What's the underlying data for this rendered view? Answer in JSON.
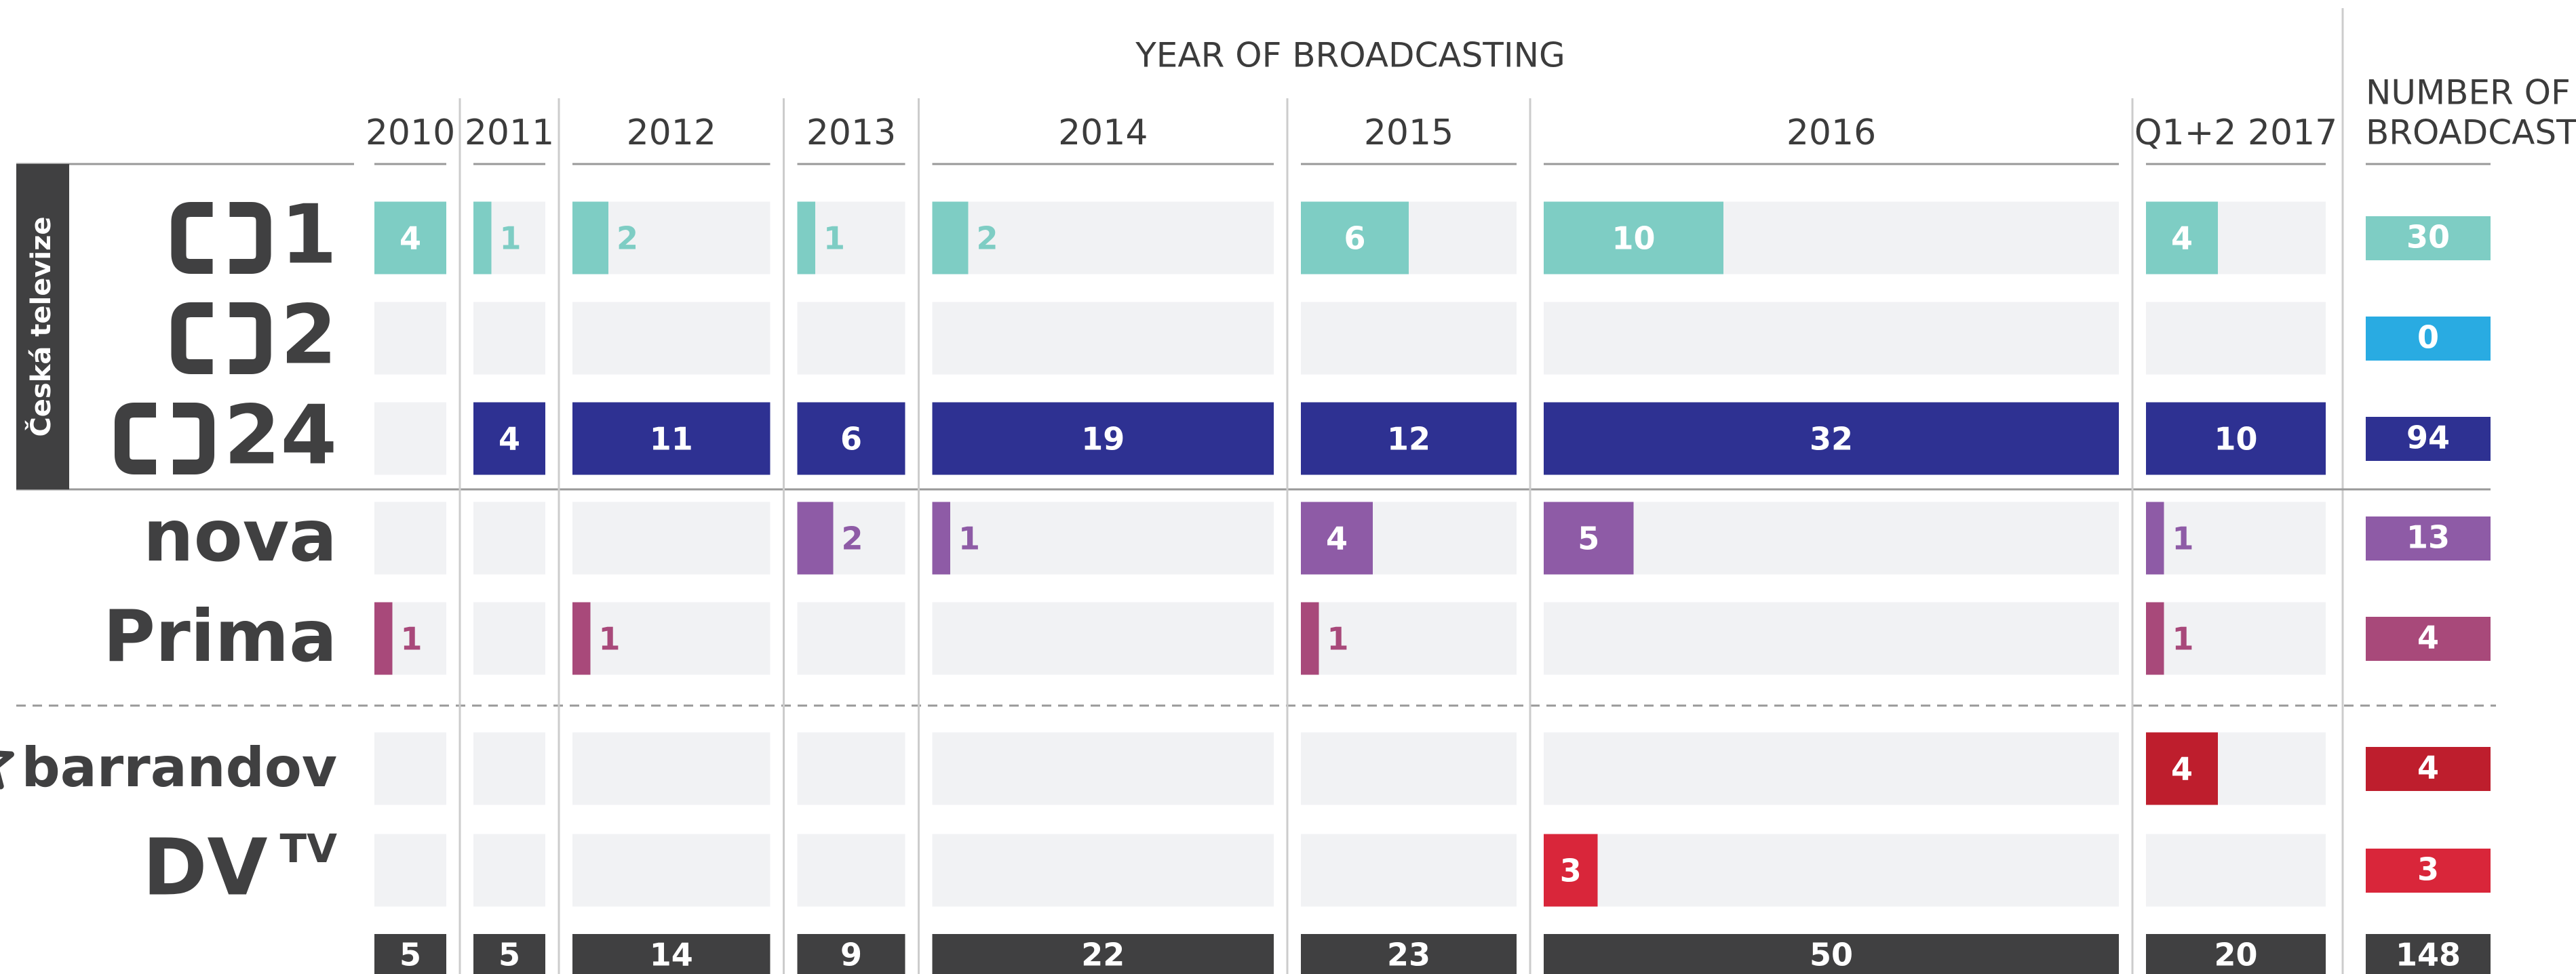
{
  "chart_data": {
    "type": "bar-matrix",
    "title": "YEAR OF BROADCASTING",
    "total_title_lines": [
      "NUMBER OF",
      "BROADCASTS"
    ],
    "group_label": "Česká televize",
    "columns": [
      "2010",
      "2011",
      "2012",
      "2013",
      "2014",
      "2015",
      "2016",
      "Q1+2 2017"
    ],
    "rows": [
      {
        "label": "1",
        "logo": "ct",
        "color": "#7ecdc4",
        "values": [
          4,
          1,
          2,
          1,
          2,
          6,
          10,
          4
        ],
        "total": 30
      },
      {
        "label": "2",
        "logo": "ct",
        "color": "#29abe2",
        "values": [
          null,
          null,
          null,
          null,
          null,
          null,
          null,
          null
        ],
        "total": 0
      },
      {
        "label": "24",
        "logo": "ct",
        "color": "#2e3192",
        "values": [
          null,
          4,
          11,
          6,
          19,
          12,
          32,
          10
        ],
        "total": 94
      },
      {
        "label": "nova",
        "color": "#8e5ba6",
        "values": [
          null,
          null,
          null,
          2,
          1,
          4,
          5,
          1
        ],
        "total": 13
      },
      {
        "label": "Prima",
        "color": "#a8497a",
        "values": [
          1,
          null,
          1,
          null,
          null,
          1,
          null,
          1
        ],
        "total": 4
      },
      {
        "label": "barrandov",
        "logo": "star",
        "color": "#be1e2d",
        "values": [
          null,
          null,
          null,
          null,
          null,
          null,
          null,
          4
        ],
        "total": 4
      },
      {
        "label": "DV",
        "sup": "TV",
        "color": "#d9263a",
        "values": [
          null,
          null,
          null,
          null,
          null,
          null,
          3,
          null
        ],
        "total": 3
      }
    ],
    "column_totals": [
      5,
      5,
      14,
      9,
      22,
      23,
      50,
      20
    ],
    "grand_total": 148,
    "total_color": "#404041",
    "cell_color": "#f1f2f4"
  }
}
